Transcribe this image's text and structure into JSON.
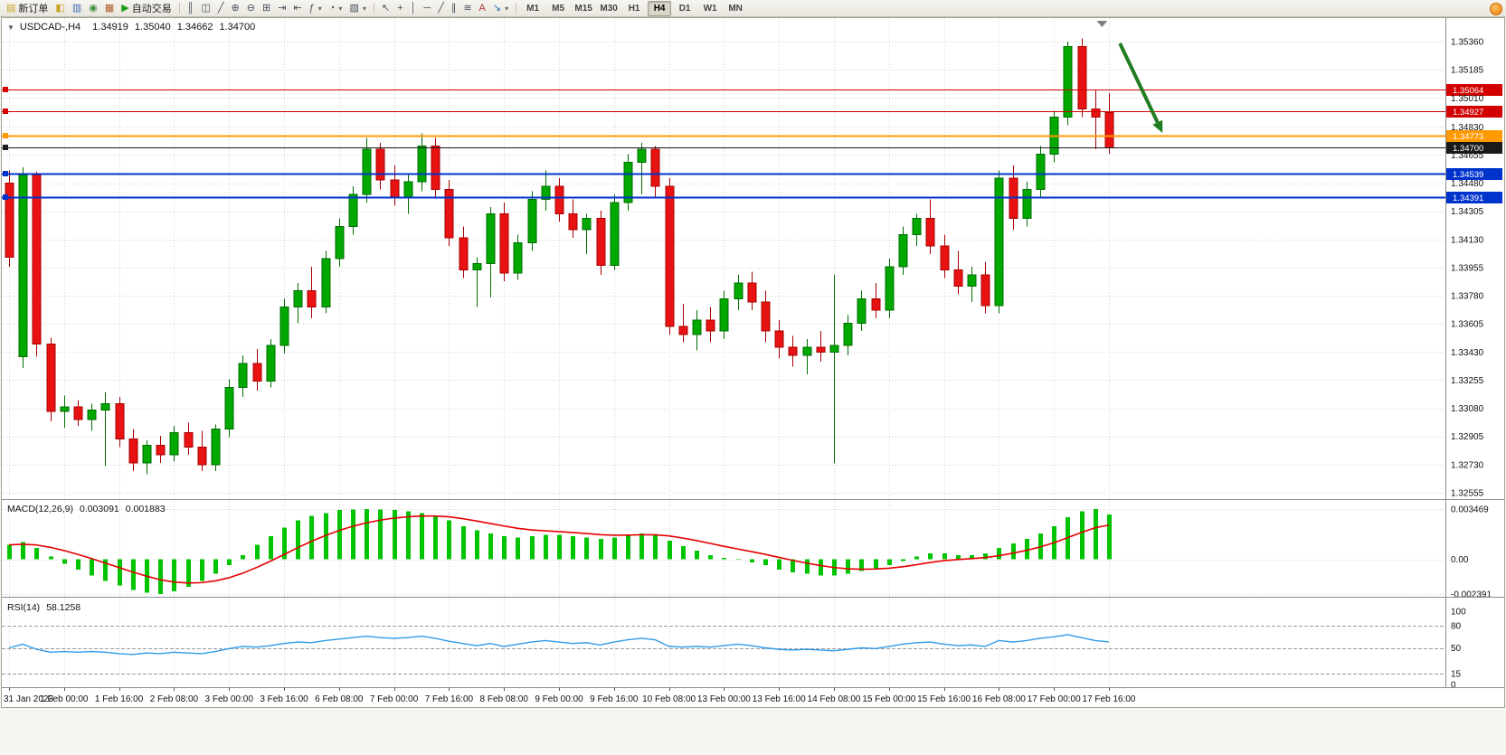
{
  "toolbar": {
    "new_order": {
      "label": "新订单",
      "glyph": "▤",
      "color": "#c9a227"
    },
    "left_icons": [
      {
        "name": "market-watch",
        "glyph": "◧",
        "color": "#c9a227"
      },
      {
        "name": "data-window",
        "glyph": "▥",
        "color": "#3b6fb5"
      },
      {
        "name": "navigator",
        "glyph": "◉",
        "color": "#3f8f3f"
      },
      {
        "name": "terminal",
        "glyph": "▦",
        "color": "#b05a2a"
      }
    ],
    "autotrading": {
      "label": "自动交易",
      "glyph": "▶",
      "color": "#18a018"
    },
    "chart_tools": [
      {
        "name": "bars-chart",
        "glyph": "║"
      },
      {
        "name": "candlestick-chart",
        "glyph": "◫"
      },
      {
        "name": "line-chart",
        "glyph": "╱"
      },
      {
        "name": "zoom-in",
        "glyph": "⊕"
      },
      {
        "name": "zoom-out",
        "glyph": "⊖"
      },
      {
        "name": "tile-windows",
        "glyph": "⊞"
      },
      {
        "name": "auto-scroll",
        "glyph": "⇥"
      },
      {
        "name": "chart-shift",
        "glyph": "⇤"
      },
      {
        "name": "indicators",
        "glyph": "ƒ",
        "caret": true
      },
      {
        "name": "periods",
        "glyph": "◔",
        "caret": true
      },
      {
        "name": "templates",
        "glyph": "▧",
        "caret": true
      }
    ],
    "draw_tools": [
      {
        "name": "cursor",
        "glyph": "↖"
      },
      {
        "name": "crosshair",
        "glyph": "+"
      },
      {
        "name": "vertical-line",
        "glyph": "│"
      },
      {
        "name": "horizontal-line",
        "glyph": "─"
      },
      {
        "name": "trendline",
        "glyph": "╱"
      },
      {
        "name": "equidistant-channel",
        "glyph": "∥"
      },
      {
        "name": "fibonacci-retracement",
        "glyph": "≋"
      },
      {
        "name": "text-label",
        "glyph": "A",
        "color": "#b03030"
      },
      {
        "name": "arrow-objects",
        "glyph": "↘",
        "color": "#2a6db5",
        "caret": true
      }
    ],
    "timeframes": [
      "M1",
      "M5",
      "M15",
      "M30",
      "H1",
      "H4",
      "D1",
      "W1",
      "MN"
    ],
    "active_timeframe": "H4"
  },
  "chart_data": {
    "type": "candlestick",
    "header": {
      "collapse_icon": "▼",
      "symbol": "USDCAD-,H4",
      "open": "1.34919",
      "high": "1.35040",
      "low": "1.34662",
      "close": "1.34700"
    },
    "price_axis": {
      "max": 1.3536,
      "min": 1.32555,
      "labels": [
        "1.35360",
        "1.35185",
        "1.35010",
        "1.34830",
        "1.34655",
        "1.34480",
        "1.34305",
        "1.34130",
        "1.33955",
        "1.33780",
        "1.33605",
        "1.33430",
        "1.33255",
        "1.33080",
        "1.32905",
        "1.32730",
        "1.32555"
      ]
    },
    "time_labels": [
      "31 Jan 2023",
      "1 Feb 00:00",
      "1 Feb 16:00",
      "2 Feb 08:00",
      "3 Feb 00:00",
      "3 Feb 16:00",
      "6 Feb 08:00",
      "7 Feb 00:00",
      "7 Feb 16:00",
      "8 Feb 08:00",
      "9 Feb 00:00",
      "9 Feb 16:00",
      "10 Feb 08:00",
      "13 Feb 00:00",
      "13 Feb 16:00",
      "14 Feb 08:00",
      "15 Feb 00:00",
      "15 Feb 16:00",
      "16 Feb 08:00",
      "17 Feb 00:00",
      "17 Feb 16:00"
    ],
    "bars_per_label": 4,
    "candles": [
      [
        1.3448,
        1.3456,
        1.3396,
        1.3402
      ],
      [
        1.334,
        1.3458,
        1.3333,
        1.3453
      ],
      [
        1.3453,
        1.3455,
        1.334,
        1.3348
      ],
      [
        1.3348,
        1.3352,
        1.33,
        1.3306
      ],
      [
        1.3306,
        1.3316,
        1.3296,
        1.3309
      ],
      [
        1.3309,
        1.3313,
        1.3297,
        1.3301
      ],
      [
        1.3301,
        1.3311,
        1.3294,
        1.3307
      ],
      [
        1.3307,
        1.3318,
        1.3272,
        1.3311
      ],
      [
        1.3311,
        1.3315,
        1.3284,
        1.3289
      ],
      [
        1.3289,
        1.3295,
        1.3269,
        1.3274
      ],
      [
        1.3274,
        1.3288,
        1.3267,
        1.3285
      ],
      [
        1.3285,
        1.3291,
        1.3274,
        1.3279
      ],
      [
        1.3279,
        1.3297,
        1.3275,
        1.3293
      ],
      [
        1.3293,
        1.3299,
        1.3279,
        1.3284
      ],
      [
        1.3284,
        1.3294,
        1.3269,
        1.3273
      ],
      [
        1.3273,
        1.3298,
        1.3269,
        1.3295
      ],
      [
        1.3295,
        1.3326,
        1.329,
        1.3321
      ],
      [
        1.3321,
        1.3341,
        1.3315,
        1.3336
      ],
      [
        1.3336,
        1.3345,
        1.3319,
        1.3325
      ],
      [
        1.3325,
        1.3351,
        1.3321,
        1.3347
      ],
      [
        1.3347,
        1.3376,
        1.3342,
        1.3371
      ],
      [
        1.3371,
        1.3386,
        1.3361,
        1.3381
      ],
      [
        1.3381,
        1.3396,
        1.3364,
        1.3371
      ],
      [
        1.3371,
        1.3406,
        1.3367,
        1.3401
      ],
      [
        1.3401,
        1.3426,
        1.3396,
        1.3421
      ],
      [
        1.3421,
        1.3446,
        1.3416,
        1.3441
      ],
      [
        1.3441,
        1.3476,
        1.3436,
        1.3469
      ],
      [
        1.3469,
        1.3473,
        1.3444,
        1.345
      ],
      [
        1.345,
        1.3459,
        1.3434,
        1.3439
      ],
      [
        1.3439,
        1.3453,
        1.3429,
        1.3449
      ],
      [
        1.3449,
        1.3479,
        1.3443,
        1.3471
      ],
      [
        1.3471,
        1.3476,
        1.3439,
        1.3444
      ],
      [
        1.3444,
        1.345,
        1.3409,
        1.3414
      ],
      [
        1.3414,
        1.3421,
        1.3389,
        1.3394
      ],
      [
        1.3394,
        1.3402,
        1.3371,
        1.3398
      ],
      [
        1.3398,
        1.3433,
        1.3377,
        1.3429
      ],
      [
        1.3429,
        1.3436,
        1.3387,
        1.3392
      ],
      [
        1.3392,
        1.3416,
        1.3388,
        1.3411
      ],
      [
        1.3411,
        1.3443,
        1.3406,
        1.3438
      ],
      [
        1.3438,
        1.3456,
        1.3431,
        1.3446
      ],
      [
        1.3446,
        1.3451,
        1.3424,
        1.3429
      ],
      [
        1.3429,
        1.3438,
        1.3414,
        1.3419
      ],
      [
        1.3419,
        1.3429,
        1.3404,
        1.3426
      ],
      [
        1.3426,
        1.3431,
        1.3391,
        1.3397
      ],
      [
        1.3397,
        1.3441,
        1.3394,
        1.3436
      ],
      [
        1.3436,
        1.3466,
        1.3431,
        1.3461
      ],
      [
        1.3461,
        1.3473,
        1.3441,
        1.3469
      ],
      [
        1.3469,
        1.3471,
        1.3439,
        1.3446
      ],
      [
        1.3446,
        1.3451,
        1.3354,
        1.3359
      ],
      [
        1.3359,
        1.3373,
        1.3349,
        1.3354
      ],
      [
        1.3354,
        1.3369,
        1.3344,
        1.3363
      ],
      [
        1.3363,
        1.3371,
        1.3349,
        1.3356
      ],
      [
        1.3356,
        1.3381,
        1.3351,
        1.3376
      ],
      [
        1.3376,
        1.3391,
        1.3369,
        1.3386
      ],
      [
        1.3386,
        1.3393,
        1.3369,
        1.3374
      ],
      [
        1.3374,
        1.3381,
        1.3349,
        1.3356
      ],
      [
        1.3356,
        1.3363,
        1.3339,
        1.3346
      ],
      [
        1.3346,
        1.3353,
        1.3334,
        1.3341
      ],
      [
        1.3341,
        1.3351,
        1.3329,
        1.3346
      ],
      [
        1.3346,
        1.3356,
        1.3337,
        1.3343
      ],
      [
        1.3343,
        1.3391,
        1.3274,
        1.3347
      ],
      [
        1.3347,
        1.3366,
        1.3341,
        1.3361
      ],
      [
        1.3361,
        1.3381,
        1.3356,
        1.3376
      ],
      [
        1.3376,
        1.3386,
        1.3364,
        1.3369
      ],
      [
        1.3369,
        1.3401,
        1.3364,
        1.3396
      ],
      [
        1.3396,
        1.3421,
        1.3391,
        1.3416
      ],
      [
        1.3416,
        1.3429,
        1.3409,
        1.3426
      ],
      [
        1.3426,
        1.3438,
        1.3404,
        1.3409
      ],
      [
        1.3409,
        1.3416,
        1.3389,
        1.3394
      ],
      [
        1.3394,
        1.3406,
        1.3379,
        1.3384
      ],
      [
        1.3384,
        1.3396,
        1.3374,
        1.3391
      ],
      [
        1.3391,
        1.3399,
        1.3367,
        1.3372
      ],
      [
        1.3372,
        1.3456,
        1.3367,
        1.3451
      ],
      [
        1.3451,
        1.3459,
        1.3419,
        1.3426
      ],
      [
        1.3426,
        1.3449,
        1.3421,
        1.3444
      ],
      [
        1.3444,
        1.3471,
        1.3439,
        1.3466
      ],
      [
        1.3466,
        1.3493,
        1.3461,
        1.3489
      ],
      [
        1.3489,
        1.3536,
        1.3484,
        1.3533
      ],
      [
        1.3533,
        1.3538,
        1.3489,
        1.3494
      ],
      [
        1.3494,
        1.3506,
        1.3469,
        1.3489
      ],
      [
        1.34919,
        1.3504,
        1.34662,
        1.347
      ]
    ],
    "levels": [
      {
        "value": 1.35064,
        "label": "1.35064",
        "color": "#d20000",
        "width": 1
      },
      {
        "value": 1.34927,
        "label": "1.34927",
        "color": "#d20000",
        "width": 1
      },
      {
        "value": 1.34773,
        "label": "1.34773",
        "color": "#ff9900",
        "width": 2
      },
      {
        "value": 1.347,
        "label": "1.34700",
        "color": "#1a1a1a",
        "width": 1
      },
      {
        "value": 1.34539,
        "label": "1.34539",
        "color": "#0033cc",
        "width": 2
      },
      {
        "value": 1.34391,
        "label": "1.34391",
        "color": "#0033cc",
        "width": 2
      }
    ],
    "bid_price": 1.347,
    "shift_marker_bar": 79.5,
    "annotation_arrow": {
      "from_bar": 80.8,
      "from_price": 1.35349,
      "to_bar": 83.9,
      "to_price": 1.34792,
      "color": "#1f7d1f"
    },
    "macd": {
      "title": "MACD(12,26,9)",
      "value_main": "0.003091",
      "value_signal": "0.001883",
      "axis_labels": [
        "0.003469",
        "0.00",
        "-0.002391"
      ],
      "scale": {
        "max": 0.003469,
        "min": -0.002391
      },
      "histogram_color": "#00c400",
      "signal_color": "#e60000",
      "histogram": [
        0.001,
        0.0012,
        0.0008,
        0.0002,
        -0.0003,
        -0.0007,
        -0.0011,
        -0.0015,
        -0.0018,
        -0.0021,
        -0.0023,
        -0.00239,
        -0.0022,
        -0.0019,
        -0.0015,
        -0.001,
        -0.0004,
        0.0003,
        0.001,
        0.0016,
        0.0022,
        0.0027,
        0.003,
        0.0032,
        0.0034,
        0.00345,
        0.00347,
        0.00345,
        0.0034,
        0.0033,
        0.0032,
        0.003,
        0.0027,
        0.0023,
        0.002,
        0.0018,
        0.0016,
        0.0015,
        0.0016,
        0.0017,
        0.0017,
        0.0016,
        0.0015,
        0.0014,
        0.0015,
        0.0017,
        0.0018,
        0.0017,
        0.0013,
        0.0009,
        0.0006,
        0.0003,
        0.0001,
        0.0,
        -0.0002,
        -0.0004,
        -0.0007,
        -0.0009,
        -0.001,
        -0.0011,
        -0.0011,
        -0.001,
        -0.0008,
        -0.0006,
        -0.0004,
        -0.0001,
        0.0002,
        0.0004,
        0.0004,
        0.0003,
        0.0003,
        0.0004,
        0.0008,
        0.0011,
        0.0014,
        0.0018,
        0.0023,
        0.0029,
        0.0033,
        0.00347,
        0.003091
      ]
    },
    "rsi": {
      "title": "RSI(14)",
      "value_display": "58.1258",
      "axis_labels": [
        "100",
        "80",
        "50",
        "15",
        "0"
      ],
      "levels": [
        80,
        50,
        15
      ],
      "scale": {
        "max": 100,
        "min": 0
      },
      "line_color": "#2f9be8",
      "values": [
        50,
        55,
        48,
        44,
        45,
        44,
        45,
        44,
        42,
        41,
        43,
        42,
        44,
        43,
        42,
        45,
        49,
        52,
        51,
        53,
        56,
        58,
        57,
        60,
        62,
        64,
        66,
        64,
        63,
        64,
        66,
        63,
        59,
        56,
        53,
        56,
        52,
        55,
        58,
        60,
        58,
        56,
        57,
        54,
        58,
        61,
        63,
        61,
        52,
        51,
        52,
        51,
        53,
        55,
        53,
        50,
        48,
        47,
        48,
        47,
        46,
        48,
        50,
        49,
        52,
        55,
        57,
        58,
        55,
        53,
        54,
        52,
        60,
        58,
        60,
        63,
        65,
        68,
        64,
        60,
        58.1
      ]
    },
    "colors": {
      "bull": "#00a800",
      "bull_stroke": "#006e00",
      "bear": "#e81212",
      "bear_stroke": "#a80000",
      "grid": "#d6d6d6",
      "axis_text": "#111111",
      "divider": "#8c8c8c"
    }
  }
}
